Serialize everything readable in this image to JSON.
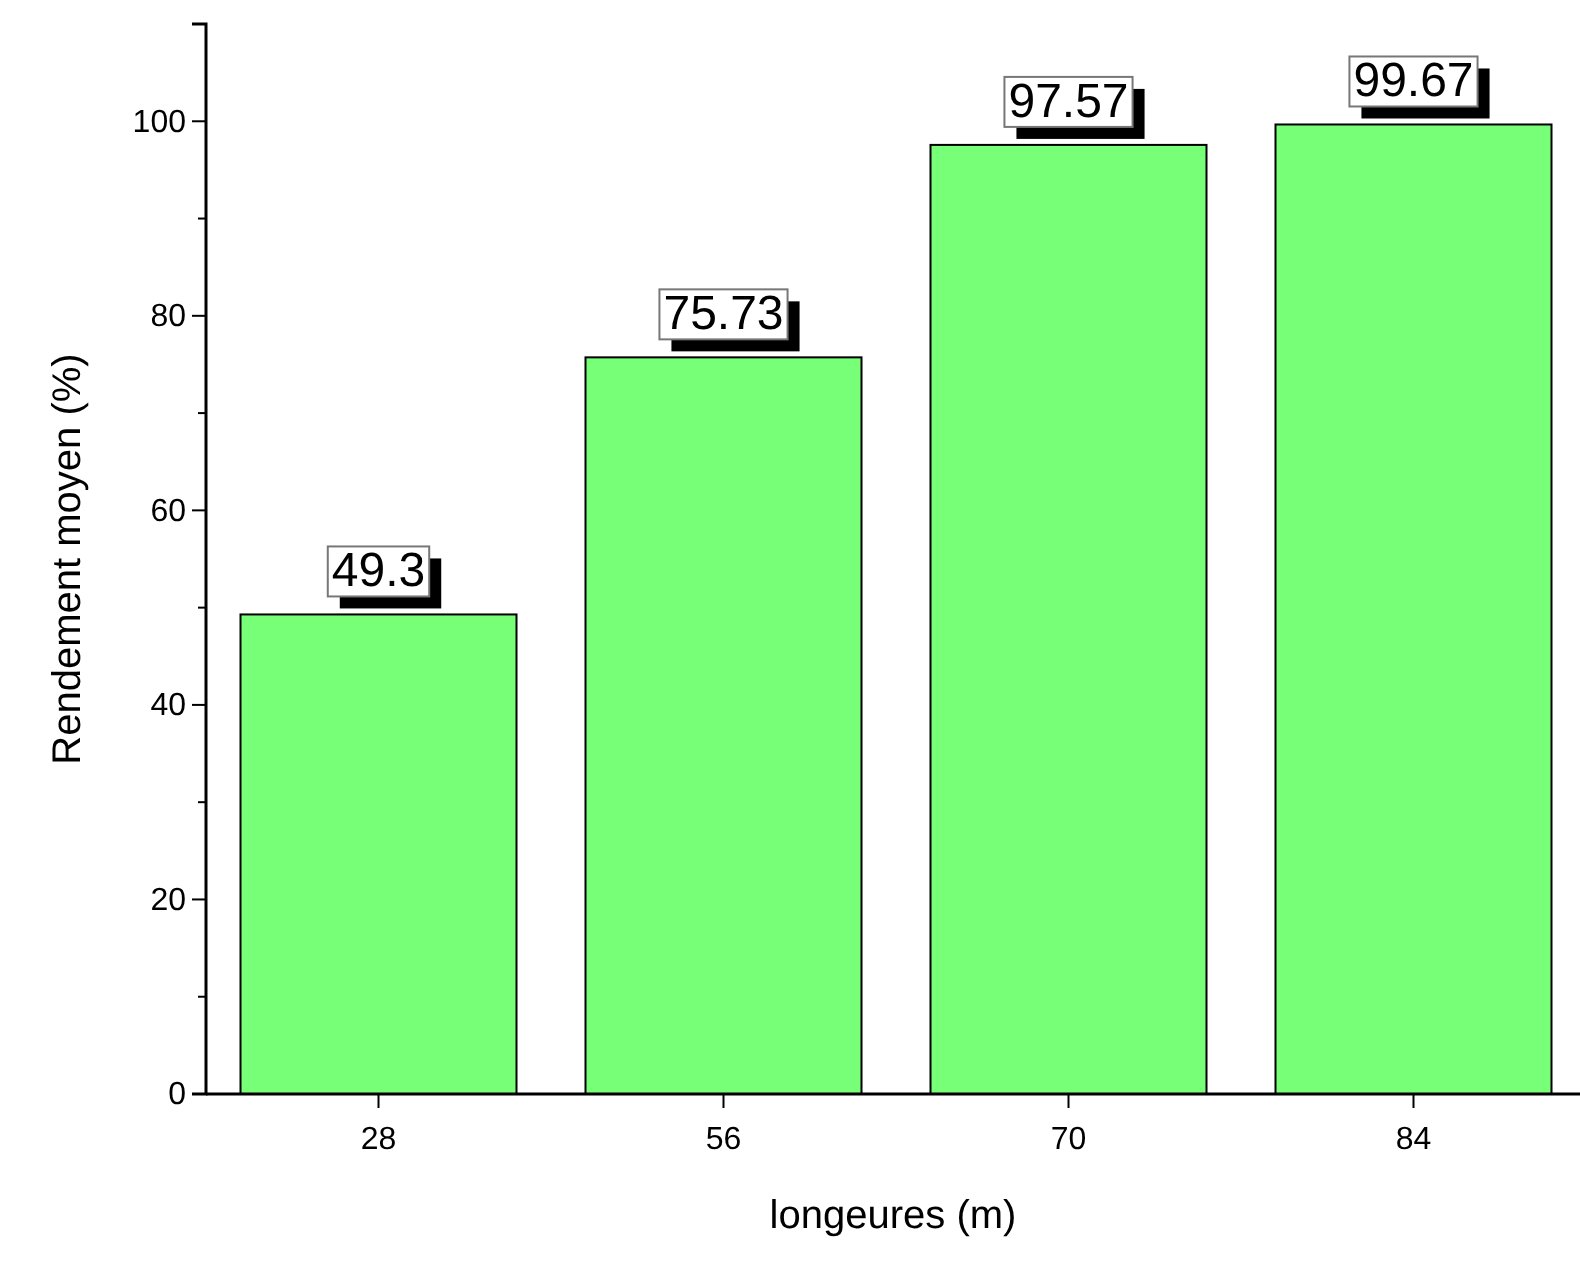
{
  "chart_data": {
    "type": "bar",
    "xlabel": "longeures (m)",
    "ylabel": "Rendement moyen (%)",
    "categories": [
      "28",
      "56",
      "70",
      "84"
    ],
    "values": [
      49.3,
      75.73,
      97.57,
      99.67
    ],
    "color": "#77ff77",
    "ylim": [
      0,
      110
    ],
    "yticks": [
      0,
      {
        "value": 10,
        "label": null
      },
      20,
      {
        "value": 30,
        "label": null
      },
      40,
      {
        "value": 50,
        "label": null
      },
      60,
      {
        "value": 70,
        "label": null
      },
      80,
      {
        "value": 90,
        "label": null
      },
      100
    ],
    "data_labels": true,
    "grid": false
  }
}
